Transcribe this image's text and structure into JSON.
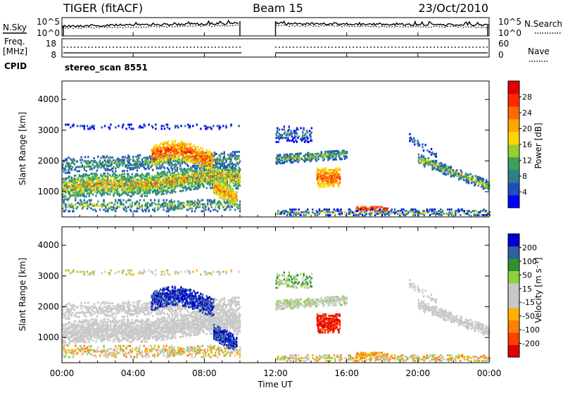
{
  "header": {
    "station": "TIGER (fitACF)",
    "beam": "Beam 15",
    "date": "23/Oct/2010"
  },
  "colors": {
    "noise_sky": "#000000",
    "power_scale": [
      "#0000ff",
      "#1e4fbf",
      "#2f7f8a",
      "#3aa05a",
      "#9acd32",
      "#ffd700",
      "#ffa500",
      "#ff6a00",
      "#ff2a00",
      "#e00000"
    ],
    "velocity_scale": [
      "#e00000",
      "#ff4000",
      "#ff8000",
      "#ffb000",
      "#c8c8c8",
      "#c8c8c8",
      "#90d040",
      "#309030",
      "#3060a0",
      "#0000d0"
    ]
  },
  "chart_data": [
    {
      "type": "line",
      "panel": "noise",
      "left_label": "N.Sky",
      "right_label": "N.Search",
      "y_ticks_left": [
        "10^5",
        "10^0"
      ],
      "y_ticks_right": [
        "10^5",
        "10^0"
      ],
      "x_range_hours": [
        0,
        24
      ],
      "data_gap_hours": [
        10,
        12
      ]
    },
    {
      "type": "line",
      "panel": "frequency",
      "left_label_line1": "Freq.",
      "left_label_line2": "[MHz]",
      "left_label_line3": "CPID",
      "right_label": "Nave",
      "y_ticks_left": [
        "18",
        "8"
      ],
      "y_ticks_right": [
        "60",
        "0"
      ],
      "cpid_text": "stereo_scan 8551"
    },
    {
      "type": "heatmap",
      "panel": "power",
      "ylabel": "Slant Range [km]",
      "y_ticks": [
        "1000",
        "2000",
        "3000",
        "4000"
      ],
      "y_range_km": [
        180,
        4600
      ],
      "colorbar_label": "Power [dB]",
      "colorbar_ticks": [
        "4",
        "8",
        "12",
        "16",
        "20",
        "24",
        "28"
      ],
      "colorbar_range": [
        0,
        32
      ]
    },
    {
      "type": "heatmap",
      "panel": "velocity",
      "ylabel": "Slant Range [km]",
      "y_ticks": [
        "1000",
        "2000",
        "3000",
        "4000"
      ],
      "y_range_km": [
        180,
        4600
      ],
      "colorbar_label": "Velocity [m s⁻¹]",
      "colorbar_ticks": [
        "-200",
        "-100",
        "-50",
        "-15",
        "15",
        "50",
        "100",
        "200"
      ]
    }
  ],
  "x_axis": {
    "ticks": [
      "00:00",
      "04:00",
      "08:00",
      "12:00",
      "16:00",
      "20:00",
      "00:00"
    ],
    "label": "Time UT"
  }
}
